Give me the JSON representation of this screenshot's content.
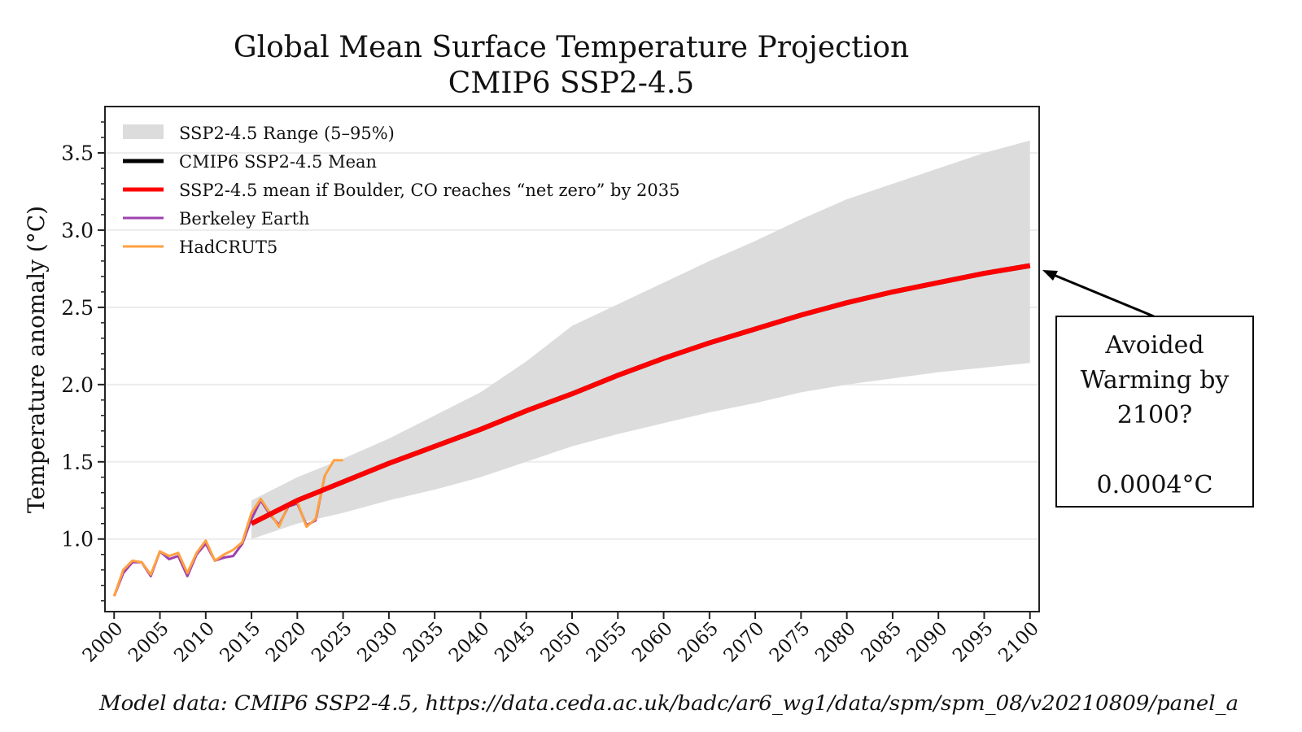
{
  "chart_data": {
    "type": "line",
    "title": "Global Mean Surface Temperature Projection",
    "subtitle": "CMIP6 SSP2-4.5",
    "xlabel": "",
    "ylabel": "Temperature anomaly (°C)",
    "xlim": [
      1999,
      2101
    ],
    "ylim": [
      0.53,
      3.8
    ],
    "grid": "horizontal",
    "legend_placement": "top-left",
    "xticks": [
      2000,
      2005,
      2010,
      2015,
      2020,
      2025,
      2030,
      2035,
      2040,
      2045,
      2050,
      2055,
      2060,
      2065,
      2070,
      2075,
      2080,
      2085,
      2090,
      2095,
      2100
    ],
    "yticks": [
      "1.0",
      "1.5",
      "2.0",
      "2.5",
      "3.0",
      "3.5"
    ],
    "range": {
      "name": "SSP2-4.5 Range (5–95%)",
      "color": "#dcdcdc",
      "x": [
        2015,
        2020,
        2025,
        2030,
        2035,
        2040,
        2045,
        2050,
        2055,
        2060,
        2065,
        2070,
        2075,
        2080,
        2085,
        2090,
        2095,
        2100
      ],
      "upper": [
        1.25,
        1.4,
        1.52,
        1.65,
        1.8,
        1.95,
        2.15,
        2.38,
        2.52,
        2.66,
        2.8,
        2.93,
        3.07,
        3.2,
        3.3,
        3.4,
        3.5,
        3.58
      ],
      "lower": [
        1.0,
        1.1,
        1.17,
        1.25,
        1.32,
        1.4,
        1.5,
        1.6,
        1.68,
        1.75,
        1.82,
        1.88,
        1.95,
        2.0,
        2.04,
        2.08,
        2.11,
        2.14
      ]
    },
    "series": [
      {
        "name": "CMIP6 SSP2-4.5 Mean",
        "color": "#000000",
        "x": [
          2015,
          2020,
          2025,
          2030,
          2035,
          2040,
          2045,
          2050,
          2055,
          2060,
          2065,
          2070,
          2075,
          2080,
          2085,
          2090,
          2095,
          2100
        ],
        "y": [
          1.1,
          1.25,
          1.37,
          1.49,
          1.6,
          1.71,
          1.83,
          1.94,
          2.06,
          2.17,
          2.27,
          2.36,
          2.45,
          2.53,
          2.6,
          2.66,
          2.72,
          2.77
        ]
      },
      {
        "name": "SSP2-4.5 mean if Boulder, CO reaches “net zero” by 2035",
        "color": "#ff0000",
        "x": [
          2015,
          2020,
          2025,
          2030,
          2035,
          2040,
          2045,
          2050,
          2055,
          2060,
          2065,
          2070,
          2075,
          2080,
          2085,
          2090,
          2095,
          2100
        ],
        "y": [
          1.1,
          1.25,
          1.37,
          1.49,
          1.6,
          1.71,
          1.83,
          1.94,
          2.06,
          2.17,
          2.27,
          2.36,
          2.45,
          2.53,
          2.6,
          2.66,
          2.72,
          2.77
        ]
      },
      {
        "name": "Berkeley Earth",
        "color": "#a040b0",
        "x": [
          2000,
          2001,
          2002,
          2003,
          2004,
          2005,
          2006,
          2007,
          2008,
          2009,
          2010,
          2011,
          2012,
          2013,
          2014,
          2015,
          2016,
          2017,
          2018,
          2019,
          2020,
          2021,
          2022,
          2023
        ],
        "y": [
          0.63,
          0.78,
          0.85,
          0.85,
          0.76,
          0.92,
          0.87,
          0.89,
          0.76,
          0.9,
          0.97,
          0.86,
          0.88,
          0.89,
          0.97,
          1.13,
          1.25,
          1.16,
          1.09,
          1.21,
          1.23,
          1.09,
          1.12,
          1.41
        ]
      },
      {
        "name": "HadCRUT5",
        "color": "#ffa040",
        "x": [
          2000,
          2001,
          2002,
          2003,
          2004,
          2005,
          2006,
          2007,
          2008,
          2009,
          2010,
          2011,
          2012,
          2013,
          2014,
          2015,
          2016,
          2017,
          2018,
          2019,
          2020,
          2021,
          2022,
          2023,
          2024,
          2025
        ],
        "y": [
          0.63,
          0.8,
          0.86,
          0.85,
          0.77,
          0.92,
          0.89,
          0.91,
          0.78,
          0.91,
          0.99,
          0.86,
          0.9,
          0.93,
          0.98,
          1.17,
          1.26,
          1.17,
          1.08,
          1.22,
          1.24,
          1.08,
          1.13,
          1.41,
          1.51,
          1.51
        ]
      }
    ]
  },
  "annotation": {
    "lines": [
      "Avoided",
      "Warming by",
      "2100?",
      "",
      "0.0004°C"
    ],
    "points_to_year": 2100
  },
  "footer": "Model data: CMIP6 SSP2-4.5, https://data.ceda.ac.uk/badc/ar6_wg1/data/spm/spm_08/v20210809/panel_a"
}
